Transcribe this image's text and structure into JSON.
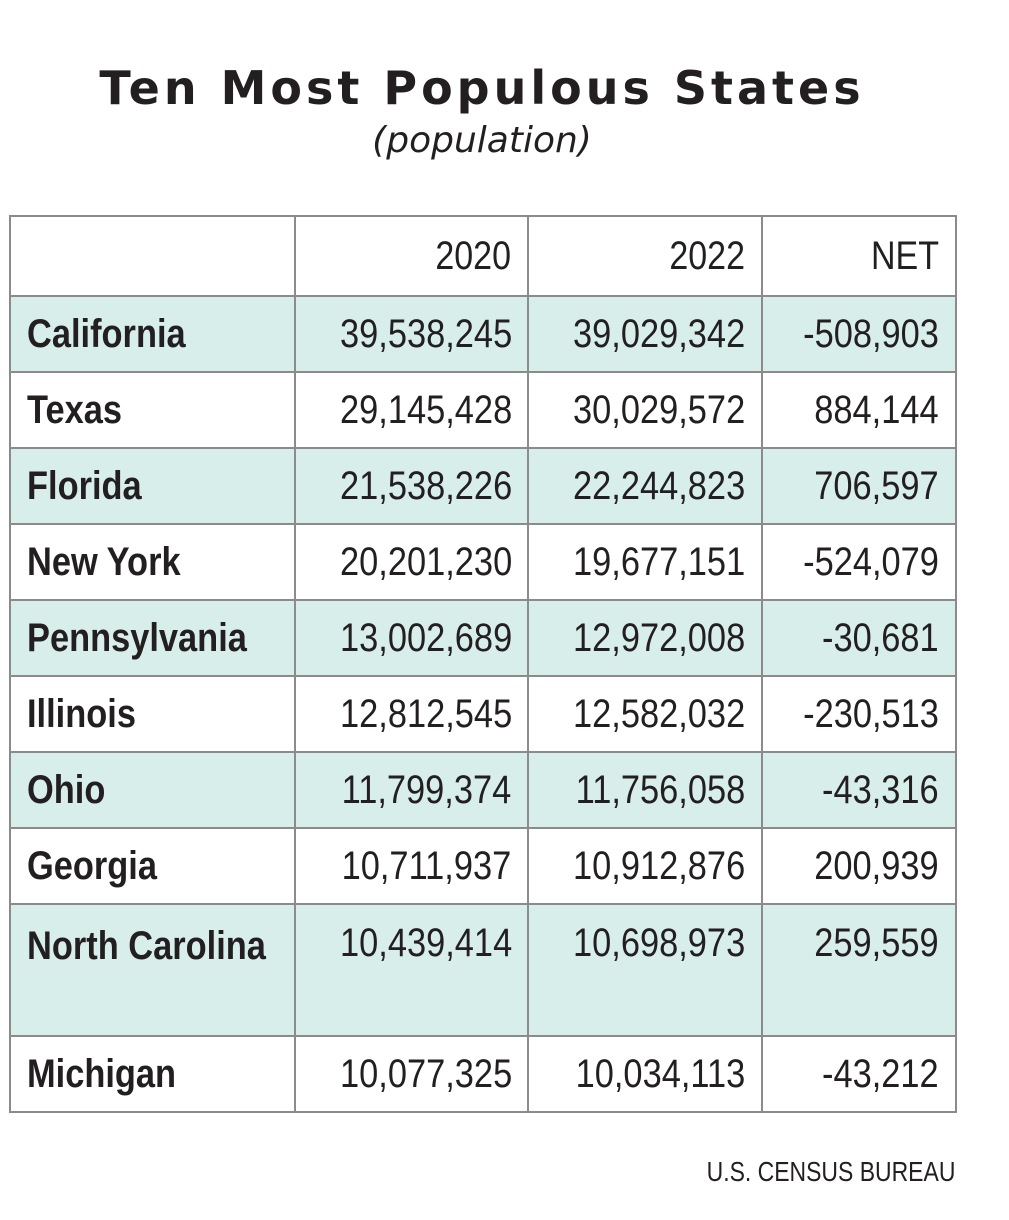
{
  "chart_data": {
    "type": "table",
    "title": "Ten Most Populous States",
    "subtitle": "(population)",
    "columns": [
      "",
      "2020",
      "2022",
      "NET"
    ],
    "rows": [
      {
        "state": "California",
        "y2020": "39,538,245",
        "y2022": "39,029,342",
        "net": "-508,903"
      },
      {
        "state": "Texas",
        "y2020": "29,145,428",
        "y2022": "30,029,572",
        "net": "884,144"
      },
      {
        "state": "Florida",
        "y2020": "21,538,226",
        "y2022": "22,244,823",
        "net": "706,597"
      },
      {
        "state": "New York",
        "y2020": "20,201,230",
        "y2022": "19,677,151",
        "net": "-524,079"
      },
      {
        "state": "Pennsylvania",
        "y2020": "13,002,689",
        "y2022": "12,972,008",
        "net": "-30,681"
      },
      {
        "state": "Illinois",
        "y2020": "12,812,545",
        "y2022": "12,582,032",
        "net": "-230,513"
      },
      {
        "state": "Ohio",
        "y2020": "11,799,374",
        "y2022": "11,756,058",
        "net": "-43,316"
      },
      {
        "state": "Georgia",
        "y2020": "10,711,937",
        "y2022": "10,912,876",
        "net": "200,939"
      },
      {
        "state": "North Carolina",
        "y2020": "10,439,414",
        "y2022": "10,698,973",
        "net": "259,559"
      },
      {
        "state": "Michigan",
        "y2020": "10,077,325",
        "y2022": "10,034,113",
        "net": "-43,212"
      }
    ],
    "source": "U.S. CENSUS BUREAU",
    "colors": {
      "shaded_row": "#d8eeeb",
      "border": "#8b8b8b",
      "text": "#231f20"
    }
  }
}
